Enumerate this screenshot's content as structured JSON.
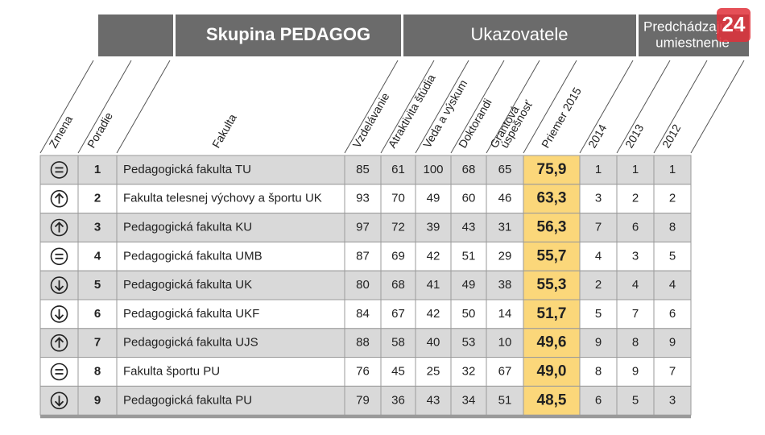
{
  "header": {
    "group": "Skupina PEDAGOG",
    "indicators": "Ukazovatele",
    "previous": [
      "Predchádzajúce",
      "umiestnenie"
    ]
  },
  "logo": "24",
  "columns": [
    [
      "Zmena"
    ],
    [
      "Poradie"
    ],
    [
      "Fakulta"
    ],
    [
      "Vzdelávanie"
    ],
    [
      "Atraktivita štúdia"
    ],
    [
      "Veda a výskum"
    ],
    [
      "Doktorandi"
    ],
    [
      "Grantová",
      "úspešnosť"
    ],
    [
      "Priemer 2015"
    ],
    [
      "2014"
    ],
    [
      "2013"
    ],
    [
      "2012"
    ]
  ],
  "rows": [
    {
      "change": "equal",
      "rank": 1,
      "faculty": "Pedagogická fakulta TU",
      "scores": [
        85,
        61,
        100,
        68,
        65
      ],
      "average": "75,9",
      "previous": [
        1,
        1,
        1
      ]
    },
    {
      "change": "up",
      "rank": 2,
      "faculty": "Fakulta telesnej výchovy a športu UK",
      "scores": [
        93,
        70,
        49,
        60,
        46
      ],
      "average": "63,3",
      "previous": [
        3,
        2,
        2
      ]
    },
    {
      "change": "up",
      "rank": 3,
      "faculty": "Pedagogická fakulta KU",
      "scores": [
        97,
        72,
        39,
        43,
        31
      ],
      "average": "56,3",
      "previous": [
        7,
        6,
        8
      ]
    },
    {
      "change": "equal",
      "rank": 4,
      "faculty": "Pedagogická fakulta UMB",
      "scores": [
        87,
        69,
        42,
        51,
        29
      ],
      "average": "55,7",
      "previous": [
        4,
        3,
        5
      ]
    },
    {
      "change": "down",
      "rank": 5,
      "faculty": "Pedagogická fakulta UK",
      "scores": [
        80,
        68,
        41,
        49,
        38
      ],
      "average": "55,3",
      "previous": [
        2,
        4,
        4
      ]
    },
    {
      "change": "down",
      "rank": 6,
      "faculty": "Pedagogická fakulta UKF",
      "scores": [
        84,
        67,
        42,
        50,
        14
      ],
      "average": "51,7",
      "previous": [
        5,
        7,
        6
      ]
    },
    {
      "change": "up",
      "rank": 7,
      "faculty": "Pedagogická fakulta UJS",
      "scores": [
        88,
        58,
        40,
        53,
        10
      ],
      "average": "49,6",
      "previous": [
        9,
        8,
        9
      ]
    },
    {
      "change": "equal",
      "rank": 8,
      "faculty": "Fakulta športu PU",
      "scores": [
        76,
        45,
        25,
        32,
        67
      ],
      "average": "49,0",
      "previous": [
        8,
        9,
        7
      ]
    },
    {
      "change": "down",
      "rank": 9,
      "faculty": "Pedagogická fakulta PU",
      "scores": [
        79,
        36,
        43,
        34,
        51
      ],
      "average": "48,5",
      "previous": [
        6,
        5,
        3
      ]
    }
  ]
}
